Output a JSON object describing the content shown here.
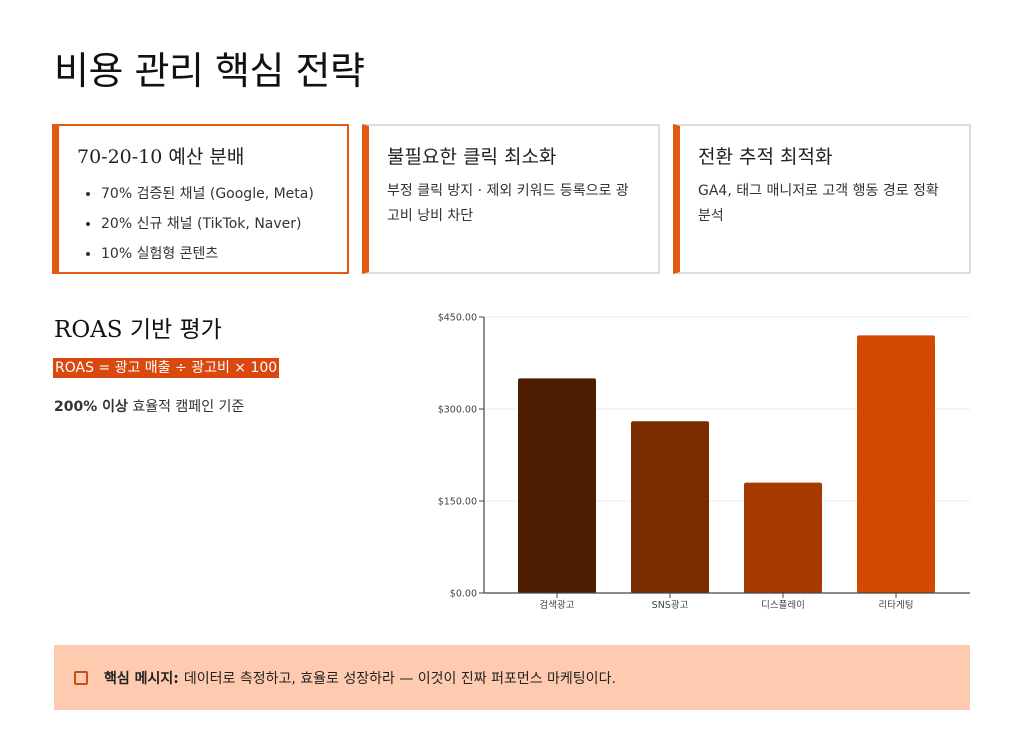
{
  "title": "비용 관리 핵심 전략",
  "cards": [
    {
      "title": "70-20-10 예산 분배",
      "items": [
        "70% 검증된 채널 (Google, Meta)",
        "20% 신규 채널 (TikTok, Naver)",
        "10% 실험형 콘텐츠"
      ]
    },
    {
      "title": "불필요한 클릭 최소화",
      "text": "부정 클릭 방지 · 제외 키워드 등록으로 광고비 낭비 차단"
    },
    {
      "title": "전환 추적 최적화",
      "text": "GA4, 태그 매니저로 고객 행동 경로 정확 분석"
    }
  ],
  "roas": {
    "heading": "ROAS 기반 평가",
    "formula": "ROAS = 광고 매출 ÷ 광고비 × 100",
    "criterion_bold": "200% 이상",
    "criterion_text": " 효율적 캠페인 기준"
  },
  "callout": {
    "icon": "note-icon",
    "label": "핵심 메시지:",
    "text": "데이터로 측정하고, 효율로 성장하라 — 이것이 진짜 퍼포먼스 마케팅이다."
  },
  "colors": {
    "accent": "#E05A0F",
    "callout_bg": "#FFCBB0"
  },
  "chart_data": {
    "type": "bar",
    "categories": [
      "검색광고",
      "SNS광고",
      "디스플레이",
      "리타게팅"
    ],
    "values": [
      350,
      280,
      180,
      420
    ],
    "colors": [
      "#4E1C00",
      "#7A2B00",
      "#A63A00",
      "#D14A00"
    ],
    "ylim": [
      0,
      450
    ],
    "yticks": [
      "$0.00",
      "$150.00",
      "$300.00",
      "$450.00"
    ],
    "ytick_values": [
      0,
      150,
      300,
      450
    ],
    "grid": true,
    "xlabel": "",
    "ylabel": ""
  }
}
